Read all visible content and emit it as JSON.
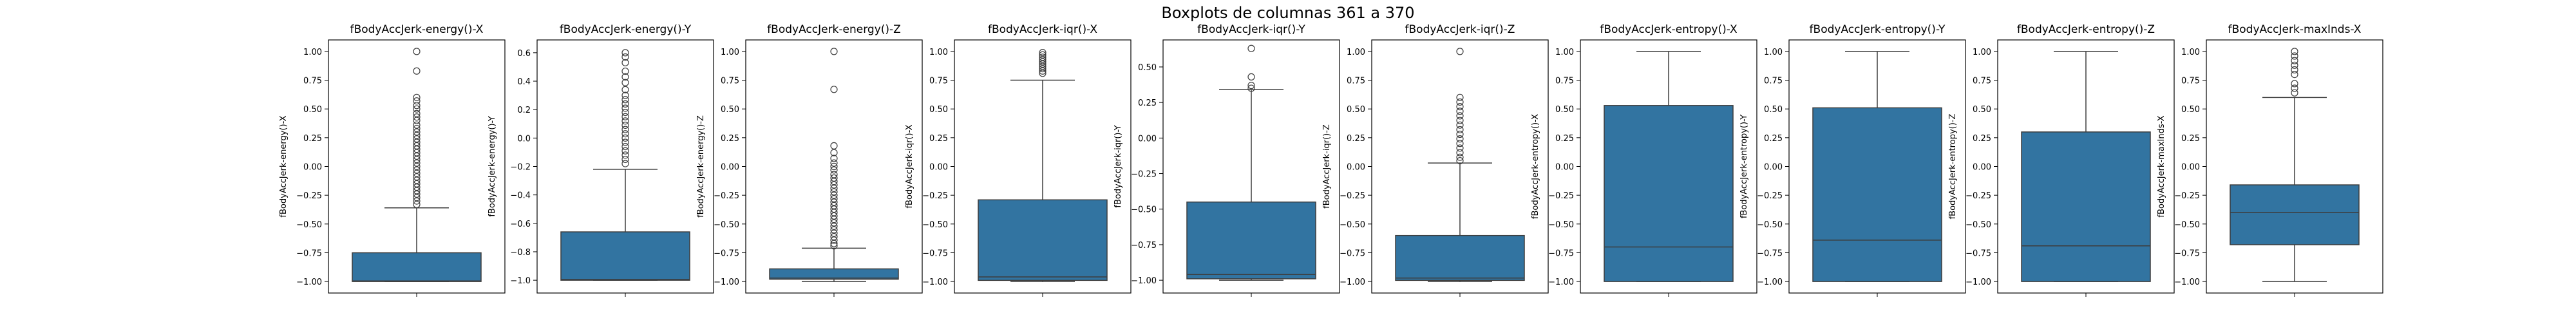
{
  "figure_title": "Boxplots de columnas 361 a 370",
  "colors": {
    "box_fill": "#3274a1",
    "line": "#3d3d3d",
    "axes": "#000000"
  },
  "chart_data": [
    {
      "type": "box",
      "title": "fBodyAccJerk-energy()-X",
      "ylabel": "fBodyAccJerk-energy()-X",
      "ylim": [
        -1.1,
        1.1
      ],
      "yticks": [
        1.0,
        0.75,
        0.5,
        0.25,
        0.0,
        -0.25,
        -0.5,
        -0.75,
        -1.0
      ],
      "ytick_labels": [
        "1.00",
        "0.75",
        "0.50",
        "0.25",
        "0.00",
        "−0.25",
        "−0.50",
        "−0.75",
        "−1.00"
      ],
      "box": {
        "whislo": -1.0,
        "q1": -1.0,
        "med": -0.995,
        "q3": -0.75,
        "whishi": -0.36
      },
      "fliers": [
        1.0,
        0.83,
        0.6,
        0.57,
        0.53,
        0.5,
        0.46,
        0.43,
        0.4,
        0.36,
        0.33,
        0.3,
        0.27,
        0.24,
        0.21,
        0.18,
        0.15,
        0.12,
        0.09,
        0.06,
        0.03,
        0.0,
        -0.03,
        -0.06,
        -0.09,
        -0.12,
        -0.15,
        -0.18,
        -0.21,
        -0.24,
        -0.27,
        -0.3,
        -0.33
      ]
    },
    {
      "type": "box",
      "title": "fBodyAccJerk-energy()-Y",
      "ylabel": "fBodyAccJerk-energy()-Y",
      "ylim": [
        -1.09,
        0.69
      ],
      "yticks": [
        0.6,
        0.4,
        0.2,
        0.0,
        -0.2,
        -0.4,
        -0.6,
        -0.8,
        -1.0
      ],
      "ytick_labels": [
        "0.6",
        "0.4",
        "0.2",
        "0.0",
        "−0.2",
        "−0.4",
        "−0.6",
        "−0.8",
        "−1.0"
      ],
      "box": {
        "whislo": -1.0,
        "q1": -1.0,
        "med": -0.995,
        "q3": -0.66,
        "whishi": -0.22
      },
      "fliers": [
        0.6,
        0.57,
        0.53,
        0.47,
        0.43,
        0.39,
        0.34,
        0.3,
        0.27,
        0.24,
        0.21,
        0.18,
        0.15,
        0.12,
        0.09,
        0.06,
        0.03,
        0.0,
        -0.03,
        -0.06,
        -0.09,
        -0.12,
        -0.15,
        -0.18
      ]
    },
    {
      "type": "box",
      "title": "fBodyAccJerk-energy()-Z",
      "ylabel": "fBodyAccJerk-energy()-Z",
      "ylim": [
        -1.1,
        1.1
      ],
      "yticks": [
        1.0,
        0.75,
        0.5,
        0.25,
        0.0,
        -0.25,
        -0.5,
        -0.75,
        -1.0
      ],
      "ytick_labels": [
        "1.00",
        "0.75",
        "0.50",
        "0.25",
        "0.00",
        "−0.25",
        "−0.50",
        "−0.75",
        "−1.00"
      ],
      "box": {
        "whislo": -1.0,
        "q1": -0.98,
        "med": -0.97,
        "q3": -0.89,
        "whishi": -0.71
      },
      "fliers": [
        1.0,
        0.67,
        0.18,
        0.12,
        0.07,
        0.03,
        0.0,
        -0.03,
        -0.07,
        -0.1,
        -0.13,
        -0.16,
        -0.19,
        -0.22,
        -0.25,
        -0.28,
        -0.31,
        -0.34,
        -0.37,
        -0.4,
        -0.43,
        -0.46,
        -0.49,
        -0.52,
        -0.55,
        -0.58,
        -0.61,
        -0.64,
        -0.67,
        -0.69
      ]
    },
    {
      "type": "box",
      "title": "fBodyAccJerk-iqr()-X",
      "ylabel": "fBodyAccJerk-iqr()-X",
      "ylim": [
        -1.1,
        1.1
      ],
      "yticks": [
        1.0,
        0.75,
        0.5,
        0.25,
        0.0,
        -0.25,
        -0.5,
        -0.75,
        -1.0
      ],
      "ytick_labels": [
        "1.00",
        "0.75",
        "0.50",
        "0.25",
        "0.00",
        "−0.25",
        "−0.50",
        "−0.75",
        "−1.00"
      ],
      "box": {
        "whislo": -1.0,
        "q1": -0.99,
        "med": -0.96,
        "q3": -0.29,
        "whishi": 0.75
      },
      "fliers": [
        0.99,
        0.97,
        0.95,
        0.93,
        0.91,
        0.89,
        0.87,
        0.85,
        0.83,
        0.81
      ]
    },
    {
      "type": "box",
      "title": "fBodyAccJerk-iqr()-Y",
      "ylabel": "fBodyAccJerk-iqr()-Y",
      "ylim": [
        -1.09,
        0.69
      ],
      "yticks": [
        0.5,
        0.25,
        0.0,
        -0.25,
        -0.5,
        -0.75,
        -1.0
      ],
      "ytick_labels": [
        "0.50",
        "0.25",
        "0.00",
        "−0.25",
        "−0.50",
        "−0.75",
        "−1.00"
      ],
      "box": {
        "whislo": -1.0,
        "q1": -0.99,
        "med": -0.96,
        "q3": -0.45,
        "whishi": 0.34
      },
      "fliers": [
        0.63,
        0.43,
        0.37,
        0.35
      ]
    },
    {
      "type": "box",
      "title": "fBodyAccJerk-iqr()-Z",
      "ylabel": "fBodyAccJerk-iqr()-Z",
      "ylim": [
        -1.1,
        1.1
      ],
      "yticks": [
        1.0,
        0.75,
        0.5,
        0.25,
        0.0,
        -0.25,
        -0.5,
        -0.75,
        -1.0
      ],
      "ytick_labels": [
        "1.00",
        "0.75",
        "0.50",
        "0.25",
        "0.00",
        "−0.25",
        "−0.50",
        "−0.75",
        "−1.00"
      ],
      "box": {
        "whislo": -1.0,
        "q1": -0.99,
        "med": -0.97,
        "q3": -0.6,
        "whishi": 0.03
      },
      "fliers": [
        1.0,
        0.6,
        0.56,
        0.52,
        0.48,
        0.44,
        0.4,
        0.36,
        0.32,
        0.28,
        0.24,
        0.2,
        0.16,
        0.12,
        0.08,
        0.05
      ]
    },
    {
      "type": "box",
      "title": "fBodyAccJerk-entropy()-X",
      "ylabel": "fBodyAccJerk-entropy()-X",
      "ylim": [
        -1.1,
        1.1
      ],
      "yticks": [
        1.0,
        0.75,
        0.5,
        0.25,
        0.0,
        -0.25,
        -0.5,
        -0.75,
        -1.0
      ],
      "ytick_labels": [
        "1.00",
        "0.75",
        "0.50",
        "0.25",
        "0.00",
        "−0.25",
        "−0.50",
        "−0.75",
        "−1.00"
      ],
      "box": {
        "whislo": -1.0,
        "q1": -1.0,
        "med": -0.7,
        "q3": 0.53,
        "whishi": 1.0
      },
      "fliers": []
    },
    {
      "type": "box",
      "title": "fBodyAccJerk-entropy()-Y",
      "ylabel": "fBodyAccJerk-entropy()-Y",
      "ylim": [
        -1.1,
        1.1
      ],
      "yticks": [
        1.0,
        0.75,
        0.5,
        0.25,
        0.0,
        -0.25,
        -0.5,
        -0.75,
        -1.0
      ],
      "ytick_labels": [
        "1.00",
        "0.75",
        "0.50",
        "0.25",
        "0.00",
        "−0.25",
        "−0.50",
        "−0.75",
        "−1.00"
      ],
      "box": {
        "whislo": -1.0,
        "q1": -1.0,
        "med": -0.64,
        "q3": 0.51,
        "whishi": 1.0
      },
      "fliers": []
    },
    {
      "type": "box",
      "title": "fBodyAccJerk-entropy()-Z",
      "ylabel": "fBodyAccJerk-entropy()-Z",
      "ylim": [
        -1.1,
        1.1
      ],
      "yticks": [
        1.0,
        0.75,
        0.5,
        0.25,
        0.0,
        -0.25,
        -0.5,
        -0.75,
        -1.0
      ],
      "ytick_labels": [
        "1.00",
        "0.75",
        "0.50",
        "0.25",
        "0.00",
        "−0.25",
        "−0.50",
        "−0.75",
        "−1.00"
      ],
      "box": {
        "whislo": -1.0,
        "q1": -1.0,
        "med": -0.69,
        "q3": 0.3,
        "whishi": 1.0
      },
      "fliers": []
    },
    {
      "type": "box",
      "title": "fBodyAccJerk-maxInds-X",
      "ylabel": "fBodyAccJerk-maxInds-X",
      "ylim": [
        -1.1,
        1.1
      ],
      "yticks": [
        1.0,
        0.75,
        0.5,
        0.25,
        0.0,
        -0.25,
        -0.5,
        -0.75,
        -1.0
      ],
      "ytick_labels": [
        "1.00",
        "0.75",
        "0.50",
        "0.25",
        "0.00",
        "−0.25",
        "−0.50",
        "−0.75",
        "−1.00"
      ],
      "box": {
        "whislo": -1.0,
        "q1": -0.68,
        "med": -0.4,
        "q3": -0.16,
        "whishi": 0.6
      },
      "fliers": [
        1.0,
        0.96,
        0.92,
        0.88,
        0.84,
        0.8,
        0.72,
        0.68,
        0.64
      ]
    }
  ]
}
